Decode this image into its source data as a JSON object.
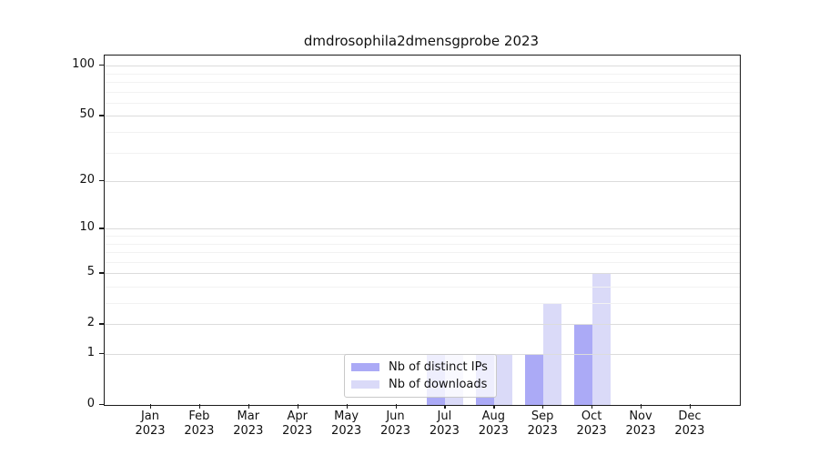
{
  "chart_data": {
    "type": "bar",
    "title": "dmdrosophila2dmensgprobe 2023",
    "year": "2023",
    "months": [
      "Jan",
      "Feb",
      "Mar",
      "Apr",
      "May",
      "Jun",
      "Jul",
      "Aug",
      "Sep",
      "Oct",
      "Nov",
      "Dec"
    ],
    "series": [
      {
        "name": "Nb of distinct IPs",
        "color": "#abaaf6",
        "values": [
          0,
          0,
          0,
          0,
          0,
          0,
          1,
          1,
          1,
          2,
          0,
          0
        ]
      },
      {
        "name": "Nb of downloads",
        "color": "#dadaf8",
        "values": [
          0,
          0,
          0,
          0,
          0,
          0,
          1,
          1,
          3,
          5,
          0,
          0
        ]
      }
    ],
    "y_axis": {
      "scale": "log10(value+1)",
      "major_ticks": [
        0,
        1,
        2,
        5,
        10,
        20,
        50,
        100
      ],
      "minor_gridlines": [
        3,
        4,
        6,
        7,
        8,
        9,
        30,
        40,
        60,
        70,
        80,
        90
      ],
      "ylim": [
        0,
        112
      ]
    },
    "xlabel": "",
    "ylabel": "",
    "grid": "horizontal",
    "legend": {
      "position": "inside-bottom-center",
      "entries": [
        "Nb of distinct IPs",
        "Nb of downloads"
      ]
    }
  }
}
